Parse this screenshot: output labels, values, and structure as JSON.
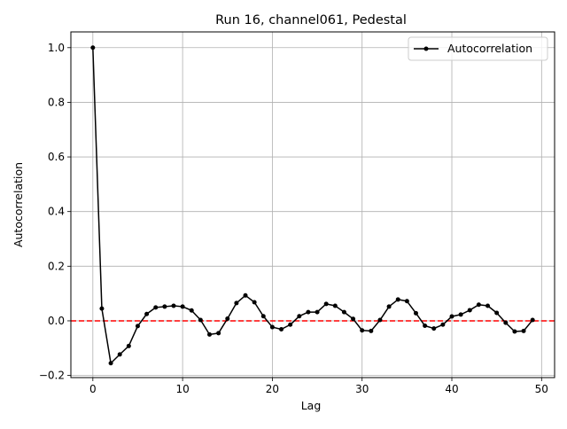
{
  "chart_data": {
    "type": "line",
    "title": "Run 16, channel061, Pedestal",
    "xlabel": "Lag",
    "ylabel": "Autocorrelation",
    "xlim": [
      -2.45,
      51.45
    ],
    "ylim": [
      -0.2078,
      1.0577
    ],
    "xticks": [
      0,
      10,
      20,
      30,
      40,
      50
    ],
    "yticks": [
      -0.2,
      0.0,
      0.2,
      0.4,
      0.6,
      0.8,
      1.0
    ],
    "xtick_labels": [
      "0",
      "10",
      "20",
      "30",
      "40",
      "50"
    ],
    "ytick_labels": [
      "−0.2",
      "0.0",
      "0.2",
      "0.4",
      "0.6",
      "0.8",
      "1.0"
    ],
    "grid": true,
    "legend": {
      "position": "upper right",
      "entries": [
        "Autocorrelation"
      ]
    },
    "series": [
      {
        "name": "Autocorrelation",
        "color": "#000000",
        "marker": "circle",
        "x": [
          0,
          1,
          2,
          3,
          4,
          5,
          6,
          7,
          8,
          9,
          10,
          11,
          12,
          13,
          14,
          15,
          16,
          17,
          18,
          19,
          20,
          21,
          22,
          23,
          24,
          25,
          26,
          27,
          28,
          29,
          30,
          31,
          32,
          33,
          34,
          35,
          36,
          37,
          38,
          39,
          40,
          41,
          42,
          43,
          44,
          45,
          46,
          47,
          48,
          49
        ],
        "y": [
          1.0,
          0.045,
          -0.155,
          -0.123,
          -0.092,
          -0.019,
          0.025,
          0.049,
          0.052,
          0.055,
          0.052,
          0.038,
          0.003,
          -0.05,
          -0.045,
          0.008,
          0.065,
          0.093,
          0.068,
          0.017,
          -0.023,
          -0.031,
          -0.014,
          0.017,
          0.032,
          0.032,
          0.062,
          0.055,
          0.032,
          0.007,
          -0.035,
          -0.037,
          0.003,
          0.052,
          0.078,
          0.072,
          0.028,
          -0.018,
          -0.028,
          -0.014,
          0.016,
          0.023,
          0.039,
          0.059,
          0.055,
          0.029,
          -0.007,
          -0.039,
          -0.037,
          0.003
        ]
      }
    ],
    "reference_line": {
      "y": 0.0,
      "color": "#ff0000",
      "style": "dashed"
    }
  }
}
